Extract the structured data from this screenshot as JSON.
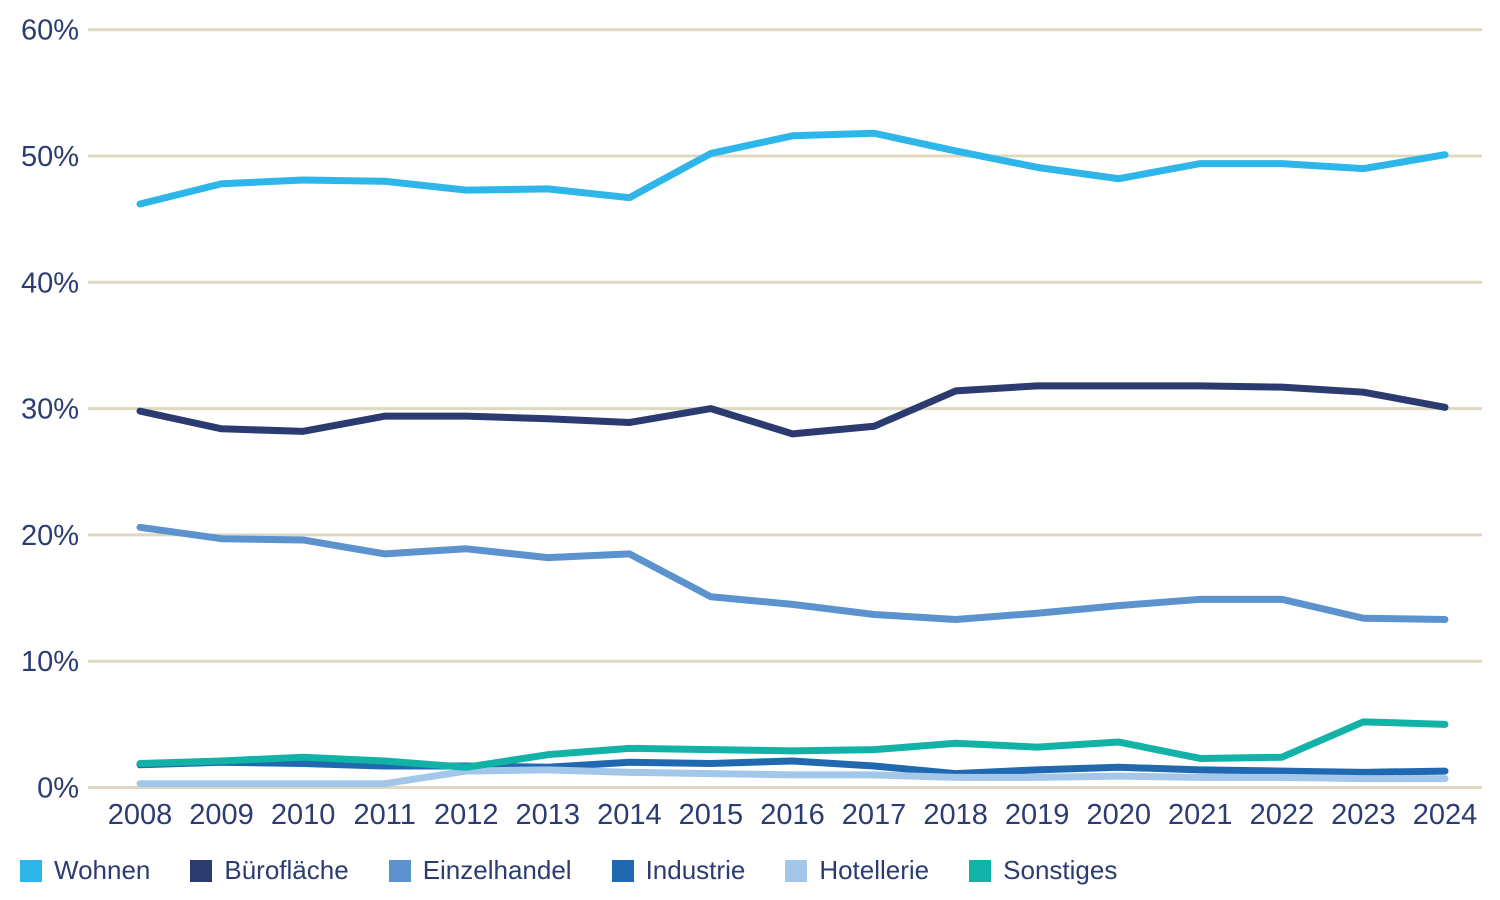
{
  "chart_data": {
    "type": "line",
    "title": "",
    "categories": [
      "2008",
      "2009",
      "2010",
      "2011",
      "2012",
      "2013",
      "2014",
      "2015",
      "2016",
      "2017",
      "2018",
      "2019",
      "2020",
      "2021",
      "2022",
      "2023",
      "2024"
    ],
    "y_axis": {
      "unit": "%",
      "min": 0,
      "max": 60,
      "ticks": [
        {
          "value": 0,
          "label": "0%"
        },
        {
          "value": 10,
          "label": "10%"
        },
        {
          "value": 20,
          "label": "20%"
        },
        {
          "value": 30,
          "label": "30%"
        },
        {
          "value": 40,
          "label": "40%"
        },
        {
          "value": 50,
          "label": "50%"
        },
        {
          "value": 60,
          "label": "60%"
        }
      ]
    },
    "grid": "horizontal-only",
    "legend_position": "bottom-left",
    "series": [
      {
        "name": "Wohnen",
        "color": "#2EB6EA",
        "values": [
          46.2,
          47.8,
          48.1,
          48.0,
          47.3,
          47.4,
          46.7,
          50.2,
          51.6,
          51.8,
          50.4,
          49.1,
          48.2,
          49.4,
          49.4,
          49.0,
          50.1
        ]
      },
      {
        "name": "Bürofläche",
        "color": "#2B3B6F",
        "values": [
          29.8,
          28.4,
          28.2,
          29.4,
          29.4,
          29.2,
          28.9,
          30.0,
          28.0,
          28.6,
          31.4,
          31.8,
          31.8,
          31.8,
          31.7,
          31.3,
          30.1
        ]
      },
      {
        "name": "Einzelhandel",
        "color": "#5C93CE",
        "values": [
          20.6,
          19.7,
          19.6,
          18.5,
          18.9,
          18.2,
          18.5,
          15.1,
          14.5,
          13.7,
          13.3,
          13.8,
          14.4,
          14.9,
          14.9,
          13.4,
          13.3
        ]
      },
      {
        "name": "Industrie",
        "color": "#2068AF",
        "values": [
          1.8,
          2.0,
          1.9,
          1.7,
          1.7,
          1.6,
          2.0,
          1.9,
          2.1,
          1.7,
          1.1,
          1.4,
          1.6,
          1.4,
          1.3,
          1.2,
          1.3
        ]
      },
      {
        "name": "Hotellerie",
        "color": "#A3C7E9",
        "values": [
          0.3,
          0.3,
          0.3,
          0.3,
          1.3,
          1.4,
          1.2,
          1.1,
          1.0,
          1.0,
          0.8,
          0.8,
          0.9,
          0.8,
          0.8,
          0.7,
          0.7
        ]
      },
      {
        "name": "Sonstiges",
        "color": "#12B2A7",
        "values": [
          1.9,
          2.1,
          2.4,
          2.1,
          1.6,
          2.6,
          3.1,
          3.0,
          2.9,
          3.0,
          3.5,
          3.2,
          3.6,
          2.3,
          2.4,
          5.2,
          5.0
        ]
      }
    ]
  },
  "colors": {
    "background": "#FFFFFF",
    "gridline": "#DFD8C0",
    "axis_text": "#2B3C72"
  }
}
